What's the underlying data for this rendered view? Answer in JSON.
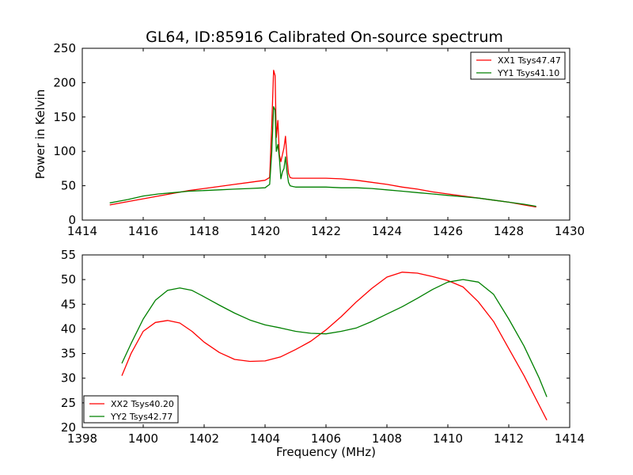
{
  "title": "GL64, ID:85916 Calibrated On-source spectrum",
  "chart_data": [
    {
      "type": "line",
      "ylabel": "Power in Kelvin",
      "xlabel": "",
      "xlim": [
        1414,
        1430
      ],
      "ylim": [
        0,
        250
      ],
      "xticks": [
        1414,
        1416,
        1418,
        1420,
        1422,
        1424,
        1426,
        1428,
        1430
      ],
      "yticks": [
        0,
        50,
        100,
        150,
        200,
        250
      ],
      "legend_position": "top-right",
      "series": [
        {
          "name": "XX1 Tsys47.47",
          "color": "#ff0000",
          "x": [
            1414.9,
            1415.5,
            1416,
            1416.5,
            1417,
            1417.5,
            1418,
            1418.5,
            1419,
            1419.5,
            1420,
            1420.15,
            1420.22,
            1420.28,
            1420.33,
            1420.37,
            1420.42,
            1420.47,
            1420.52,
            1420.57,
            1420.62,
            1420.67,
            1420.72,
            1420.77,
            1420.82,
            1420.9,
            1421,
            1421.5,
            1422,
            1422.5,
            1423,
            1423.5,
            1424,
            1424.5,
            1425,
            1425.5,
            1426,
            1426.5,
            1427,
            1427.5,
            1428,
            1428.5,
            1428.9
          ],
          "values": [
            22,
            27,
            31,
            35,
            39,
            43,
            46,
            49,
            52,
            55,
            58,
            62,
            140,
            218,
            210,
            120,
            145,
            95,
            85,
            95,
            105,
            122,
            90,
            68,
            62,
            61,
            61,
            61,
            61,
            60,
            58,
            55,
            52,
            48,
            45,
            41,
            38,
            35,
            32,
            29,
            26,
            22,
            19
          ]
        },
        {
          "name": "YY1 Tsys41.10",
          "color": "#008000",
          "x": [
            1414.9,
            1415.5,
            1416,
            1416.5,
            1417,
            1417.5,
            1418,
            1418.5,
            1419,
            1419.5,
            1420,
            1420.15,
            1420.22,
            1420.28,
            1420.33,
            1420.37,
            1420.42,
            1420.47,
            1420.52,
            1420.57,
            1420.62,
            1420.67,
            1420.72,
            1420.77,
            1420.82,
            1420.9,
            1421,
            1421.5,
            1422,
            1422.5,
            1423,
            1423.5,
            1424,
            1424.5,
            1425,
            1425.5,
            1426,
            1426.5,
            1427,
            1427.5,
            1428,
            1428.5,
            1428.9
          ],
          "values": [
            25,
            30,
            35,
            38,
            40,
            42,
            43,
            44,
            45,
            46,
            47,
            52,
            100,
            165,
            160,
            100,
            110,
            90,
            60,
            70,
            75,
            92,
            70,
            55,
            50,
            49,
            48,
            48,
            48,
            47,
            47,
            46,
            44,
            42,
            40,
            38,
            36,
            34,
            32,
            29,
            26,
            23,
            20
          ]
        }
      ]
    },
    {
      "type": "line",
      "ylabel": "",
      "xlabel": "Frequency (MHz)",
      "xlim": [
        1398,
        1414
      ],
      "ylim": [
        20,
        55
      ],
      "xticks": [
        1398,
        1400,
        1402,
        1404,
        1406,
        1408,
        1410,
        1412,
        1414
      ],
      "yticks": [
        20,
        25,
        30,
        35,
        40,
        45,
        50,
        55
      ],
      "legend_position": "bottom-left",
      "series": [
        {
          "name": "XX2 Tsys40.20",
          "color": "#ff0000",
          "x": [
            1399.3,
            1399.6,
            1400,
            1400.4,
            1400.8,
            1401.2,
            1401.6,
            1402,
            1402.5,
            1403,
            1403.5,
            1404,
            1404.5,
            1405,
            1405.5,
            1406,
            1406.5,
            1407,
            1407.5,
            1408,
            1408.5,
            1409,
            1409.5,
            1410,
            1410.5,
            1411,
            1411.5,
            1412,
            1412.5,
            1413,
            1413.25
          ],
          "values": [
            30.5,
            35,
            39.5,
            41.3,
            41.7,
            41.2,
            39.5,
            37.3,
            35.2,
            33.8,
            33.4,
            33.5,
            34.3,
            35.8,
            37.5,
            39.8,
            42.5,
            45.5,
            48.2,
            50.5,
            51.5,
            51.3,
            50.6,
            49.8,
            48.5,
            45.5,
            41.5,
            36,
            30.5,
            24.5,
            21.5
          ]
        },
        {
          "name": "YY2 Tsys42.77",
          "color": "#008000",
          "x": [
            1399.3,
            1399.6,
            1400,
            1400.4,
            1400.8,
            1401.2,
            1401.6,
            1402,
            1402.5,
            1403,
            1403.5,
            1404,
            1404.5,
            1405,
            1405.5,
            1406,
            1406.5,
            1407,
            1407.5,
            1408,
            1408.5,
            1409,
            1409.5,
            1410,
            1410.5,
            1411,
            1411.5,
            1412,
            1412.5,
            1413,
            1413.25
          ],
          "values": [
            33,
            37,
            42,
            45.8,
            47.8,
            48.3,
            47.8,
            46.5,
            44.8,
            43.2,
            41.8,
            40.8,
            40.2,
            39.5,
            39.1,
            39,
            39.5,
            40.2,
            41.5,
            43,
            44.5,
            46.2,
            48,
            49.5,
            50,
            49.5,
            47,
            42,
            36.5,
            30,
            26.2
          ]
        }
      ]
    }
  ]
}
